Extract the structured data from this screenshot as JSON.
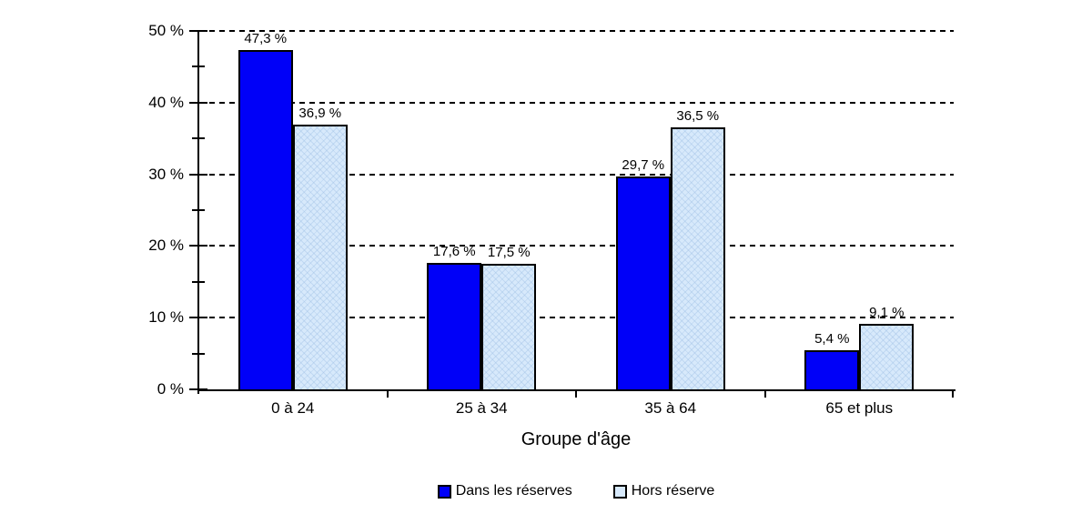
{
  "chart_data": {
    "type": "bar",
    "title": "",
    "xlabel": "Groupe d'âge",
    "ylabel": "",
    "categories": [
      "0 à 24",
      "25 à 34",
      "35 à 64",
      "65 et plus"
    ],
    "series": [
      {
        "name": "Dans les réserves",
        "color": "#0000F8",
        "pattern": false,
        "values": [
          47.3,
          17.6,
          29.7,
          5.4
        ],
        "value_labels": [
          "47,3 %",
          "17,6 %",
          "29,7 %",
          "5,4 %"
        ]
      },
      {
        "name": "Hors réserve",
        "color": "#D7E9FB",
        "pattern": true,
        "values": [
          36.9,
          17.5,
          36.5,
          9.1
        ],
        "value_labels": [
          "36,9 %",
          "17,5 %",
          "36,5 %",
          "9,1 %"
        ]
      }
    ],
    "ylim": [
      0,
      50
    ],
    "yticks": [
      {
        "value": 0,
        "label": "0 %"
      },
      {
        "value": 10,
        "label": "10 %"
      },
      {
        "value": 20,
        "label": "20 %"
      },
      {
        "value": 30,
        "label": "30 %"
      },
      {
        "value": 40,
        "label": "40 %"
      },
      {
        "value": 50,
        "label": "50 %"
      }
    ],
    "minor_tick_step": 5,
    "grid": "horizontal-dashed",
    "legend_position": "bottom",
    "colors": {
      "bar_border": "#000000",
      "axis": "#000000",
      "text": "#000000",
      "background": "#FFFFFF"
    }
  }
}
